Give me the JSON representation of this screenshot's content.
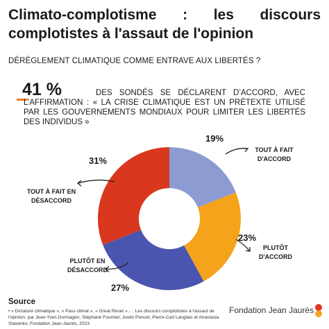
{
  "header": {
    "title": "Climato-complotisme : les discours complotistes à l'assaut de l'opinion",
    "subtitle": "DÉRÈGLEMENT CLIMATIQUE COMME ENTRAVE AUX LIBERTÉS ?",
    "stat": "41 %",
    "statement": "DES SONDÉS SE DÉCLARENT D’ACCORD, AVEC L’AFFIRMATION : « LA CRISE CLIMATIQUE EST UN PRÉTEXTE UTILISÉ PAR LES GOUVERNEMENTS MONDIAUX POUR LIMITER LES LIBERTÉS DES INDIVIDUS »"
  },
  "chart_data": {
    "type": "donut",
    "categories": [
      "TOUT À FAIT D'ACCORD",
      "PLUTÔT D'ACCORD",
      "PLUTÔT EN DÉSACCORD",
      "TOUT À FAIT EN DÉSACCORD"
    ],
    "values": [
      19,
      23,
      27,
      31
    ],
    "value_labels": [
      "19%",
      "23%",
      "27%",
      "31%"
    ],
    "colors": [
      "#8d9bd3",
      "#f5a31a",
      "#4a55b0",
      "#d9381e"
    ]
  },
  "footer": {
    "source_title": "Source",
    "source_text": "• « Dictature climatique », « Pass climat », « Great Reset »... : Les discours complotistes à l'assaut de l'opinion, par Jean-Yves Dormagen, Stéphane Fournier, Justin Poncet, Pierre-Carl Langlais et Anastasia Stasenko, Fondation Jean-Jaurès, 2023",
    "organization": "Fondation Jean Jaurès"
  }
}
